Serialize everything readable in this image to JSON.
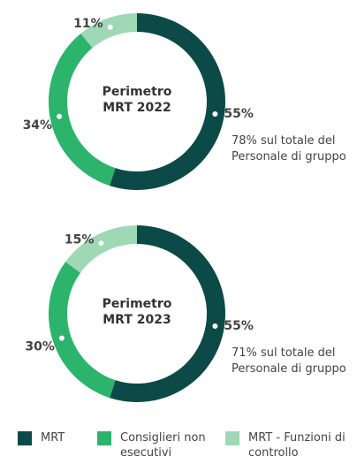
{
  "chart_data": [
    {
      "type": "donut",
      "title": "Perimetro MRT 2022",
      "categories": [
        "MRT",
        "Consiglieri non esecutivi",
        "MRT - Funzioni di controllo"
      ],
      "values": [
        55,
        34,
        11
      ],
      "value_labels": [
        "55%",
        "34%",
        "11%"
      ],
      "colors": [
        "#0c4a47",
        "#2cb36c",
        "#9fd8b4"
      ],
      "annotation": "78% sul totale del Personale di gruppo"
    },
    {
      "type": "donut",
      "title": "Perimetro MRT 2023",
      "categories": [
        "MRT",
        "Consiglieri non esecutivi",
        "MRT - Funzioni di controllo"
      ],
      "values": [
        55,
        30,
        15
      ],
      "value_labels": [
        "55%",
        "30%",
        "15%"
      ],
      "colors": [
        "#0c4a47",
        "#2cb36c",
        "#9fd8b4"
      ],
      "annotation": "71% sul totale del Personale di gruppo"
    }
  ]
}
